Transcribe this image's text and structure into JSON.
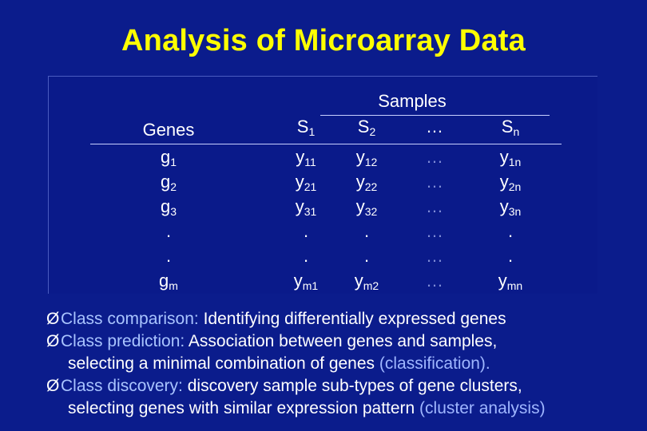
{
  "title": "Analysis of Microarray Data",
  "table": {
    "samples_label": "Samples",
    "genes_label": "Genes",
    "columns": [
      {
        "base": "S",
        "sub": "1"
      },
      {
        "base": "S",
        "sub": "2"
      },
      {
        "base": "…",
        "sub": ""
      },
      {
        "base": "S",
        "sub": "n"
      }
    ],
    "rows": [
      {
        "gene": {
          "base": "g",
          "sub": "1"
        },
        "cells": [
          {
            "base": "y",
            "sub": "11"
          },
          {
            "base": "y",
            "sub": "12"
          },
          {
            "base": "…",
            "sub": ""
          },
          {
            "base": "y",
            "sub": "1n"
          }
        ]
      },
      {
        "gene": {
          "base": "g",
          "sub": "2"
        },
        "cells": [
          {
            "base": "y",
            "sub": "21"
          },
          {
            "base": "y",
            "sub": "22"
          },
          {
            "base": "…",
            "sub": ""
          },
          {
            "base": "y",
            "sub": "2n"
          }
        ]
      },
      {
        "gene": {
          "base": "g",
          "sub": "3"
        },
        "cells": [
          {
            "base": "y",
            "sub": "31"
          },
          {
            "base": "y",
            "sub": "32"
          },
          {
            "base": "…",
            "sub": ""
          },
          {
            "base": "y",
            "sub": "3n"
          }
        ]
      },
      {
        "gene": {
          "base": ".",
          "sub": ""
        },
        "cells": [
          {
            "base": ".",
            "sub": ""
          },
          {
            "base": ".",
            "sub": ""
          },
          {
            "base": "…",
            "sub": ""
          },
          {
            "base": ".",
            "sub": ""
          }
        ]
      },
      {
        "gene": {
          "base": ".",
          "sub": ""
        },
        "cells": [
          {
            "base": ".",
            "sub": ""
          },
          {
            "base": ".",
            "sub": ""
          },
          {
            "base": "…",
            "sub": ""
          },
          {
            "base": ".",
            "sub": ""
          }
        ]
      },
      {
        "gene": {
          "base": "g",
          "sub": "m"
        },
        "cells": [
          {
            "base": "y",
            "sub": "m1"
          },
          {
            "base": "y",
            "sub": "m2"
          },
          {
            "base": "…",
            "sub": ""
          },
          {
            "base": "y",
            "sub": "mn"
          }
        ]
      }
    ]
  },
  "bullets": [
    {
      "term": "Class comparison:",
      "text": " Identifying differentially expressed genes",
      "cont": "",
      "paren": ""
    },
    {
      "term": "Class prediction:",
      "text": " Association between genes and samples,",
      "cont": "selecting a minimal combination of genes",
      "paren": " (classification)."
    },
    {
      "term": "Class discovery:",
      "text": " discovery sample sub-types of gene clusters,",
      "cont": "selecting genes with similar expression pattern",
      "paren": " (cluster analysis)"
    }
  ],
  "colors": {
    "background": "#0b1c8c",
    "title": "#ffff00",
    "accent": "#a9c4ff"
  },
  "icons": {
    "bullet": "arrow-bullet-icon"
  }
}
